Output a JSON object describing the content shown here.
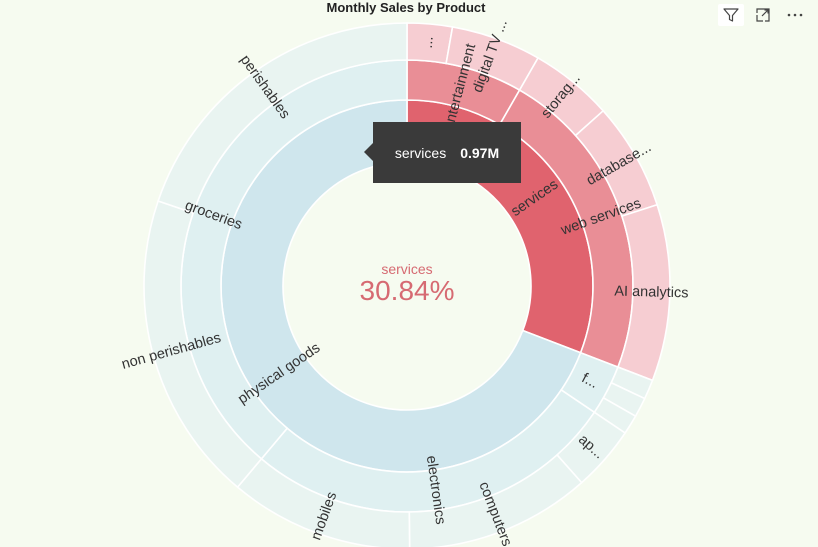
{
  "title": "Monthly Sales by Product",
  "toolbar": {
    "filter_icon": "filter-icon",
    "focus_icon": "focus-mode-icon",
    "more_icon": "more-options-icon"
  },
  "center": {
    "label": "services",
    "value": "30.84%"
  },
  "tooltip": {
    "label": "services",
    "value": "0.97M"
  },
  "colors": {
    "services_inner": "#e0636e",
    "services_mid": "#e98e96",
    "services_outer": "#f6cdd2",
    "goods_inner": "#cfe6ed",
    "goods_mid": "#dff0f1",
    "goods_outer": "#e9f4f1",
    "background": "#f6fbf0"
  },
  "chart_data": {
    "type": "sunburst",
    "title": "Monthly Sales by Product",
    "rings": [
      {
        "level": "category",
        "segments": [
          {
            "label": "services",
            "share": 30.84,
            "color_key": "services_inner"
          },
          {
            "label": "physical goods",
            "share": 69.16,
            "color_key": "goods_inner"
          }
        ]
      },
      {
        "level": "subcategory",
        "segments": [
          {
            "label": "entertainment",
            "parent": "services",
            "share": 8.3,
            "color_key": "services_mid"
          },
          {
            "label": "web services",
            "parent": "services",
            "share": 22.54,
            "color_key": "services_mid"
          },
          {
            "label": "f...",
            "parent": "physical goods",
            "share": 3.6,
            "color_key": "goods_mid"
          },
          {
            "label": "electronics",
            "parent": "physical goods",
            "share": 26.7,
            "color_key": "goods_mid"
          },
          {
            "label": "groceries",
            "parent": "physical goods",
            "share": 38.86,
            "color_key": "goods_mid"
          }
        ]
      },
      {
        "level": "product",
        "segments": [
          {
            "label": "...",
            "parent": "entertainment",
            "share": 2.77,
            "color_key": "services_outer"
          },
          {
            "label": "digital TV ...",
            "parent": "entertainment",
            "share": 5.53,
            "color_key": "services_outer"
          },
          {
            "label": "storag...",
            "parent": "web services",
            "share": 5.1,
            "color_key": "services_outer"
          },
          {
            "label": "database...",
            "parent": "web services",
            "share": 6.6,
            "color_key": "services_outer"
          },
          {
            "label": "AI analytics",
            "parent": "web services",
            "share": 10.84,
            "color_key": "services_outer"
          },
          {
            "label": "",
            "parent": "f...",
            "share": 1.2,
            "color_key": "goods_outer"
          },
          {
            "label": "",
            "parent": "f...",
            "share": 1.2,
            "color_key": "goods_outer"
          },
          {
            "label": "",
            "parent": "f...",
            "share": 1.2,
            "color_key": "goods_outer"
          },
          {
            "label": "ap...",
            "parent": "electronics",
            "share": 4.0,
            "color_key": "goods_outer"
          },
          {
            "label": "computers",
            "parent": "electronics",
            "share": 11.4,
            "color_key": "goods_outer"
          },
          {
            "label": "mobiles",
            "parent": "electronics",
            "share": 11.3,
            "color_key": "goods_outer"
          },
          {
            "label": "non perishables",
            "parent": "groceries",
            "share": 19.1,
            "color_key": "goods_outer"
          },
          {
            "label": "perishables",
            "parent": "groceries",
            "share": 19.76,
            "color_key": "goods_outer"
          }
        ]
      }
    ]
  }
}
